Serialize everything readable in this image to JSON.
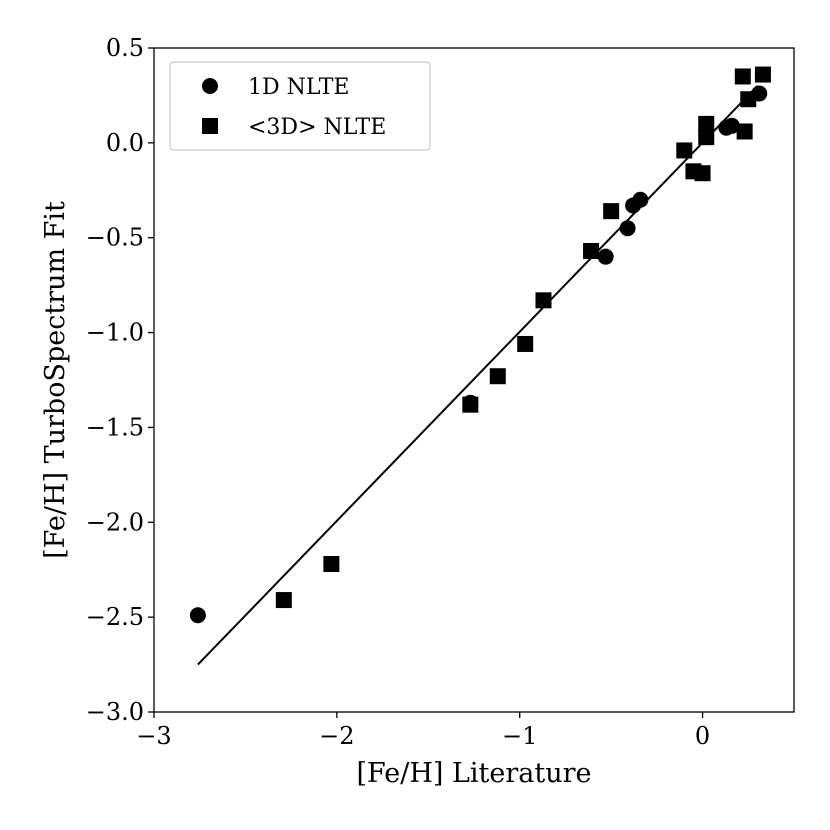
{
  "chart_data": {
    "type": "scatter",
    "title": "",
    "xlabel": "[Fe/H] Literature",
    "ylabel": "[Fe/H] TurboSpectrum Fit",
    "xlim": [
      -3.0,
      0.5
    ],
    "ylim": [
      -3.0,
      0.5
    ],
    "xticks": [
      -3,
      -2,
      -1,
      0
    ],
    "xtick_labels": [
      "−3",
      "−2",
      "−1",
      "0"
    ],
    "yticks": [
      0.5,
      0.0,
      -0.5,
      -1.0,
      -1.5,
      -2.0,
      -2.5,
      -3.0
    ],
    "ytick_labels": [
      "0.5",
      "0.0",
      "−0.5",
      "−1.0",
      "−1.5",
      "−2.0",
      "−2.5",
      "−3.0"
    ],
    "grid": false,
    "legend_position": "top-left",
    "series": [
      {
        "name": "1D NLTE",
        "marker": "circle",
        "color": "#000000",
        "points": [
          [
            -2.76,
            -2.49
          ],
          [
            -1.27,
            -1.37
          ],
          [
            -0.53,
            -0.6
          ],
          [
            -0.41,
            -0.45
          ],
          [
            -0.38,
            -0.33
          ],
          [
            -0.34,
            -0.3
          ],
          [
            0.13,
            0.08
          ],
          [
            0.16,
            0.09
          ],
          [
            0.31,
            0.26
          ]
        ]
      },
      {
        "name": "<3D> NLTE",
        "marker": "square",
        "color": "#000000",
        "points": [
          [
            -2.29,
            -2.41
          ],
          [
            -2.03,
            -2.22
          ],
          [
            -1.27,
            -1.38
          ],
          [
            -1.12,
            -1.23
          ],
          [
            -0.97,
            -1.06
          ],
          [
            -0.87,
            -0.83
          ],
          [
            -0.61,
            -0.57
          ],
          [
            -0.5,
            -0.36
          ],
          [
            -0.1,
            -0.04
          ],
          [
            -0.05,
            -0.15
          ],
          [
            0.0,
            -0.16
          ],
          [
            0.02,
            0.1
          ],
          [
            0.02,
            0.03
          ],
          [
            0.22,
            0.35
          ],
          [
            0.23,
            0.06
          ],
          [
            0.25,
            0.23
          ],
          [
            0.33,
            0.36
          ]
        ]
      }
    ],
    "fit_line": {
      "color": "#000000",
      "points": [
        [
          -2.76,
          -2.75
        ],
        [
          0.3,
          0.3
        ]
      ]
    }
  }
}
